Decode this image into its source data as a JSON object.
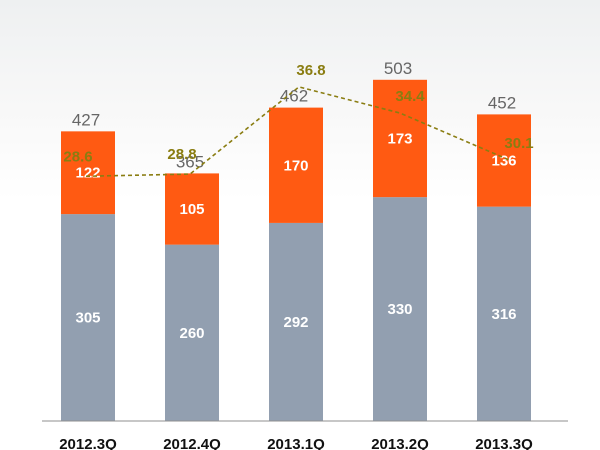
{
  "chart_data": {
    "type": "bar",
    "stacked": true,
    "categories": [
      "2012.3Q",
      "2012.4Q",
      "2013.1Q",
      "2013.2Q",
      "2013.3Q"
    ],
    "series": [
      {
        "values": [
          305,
          260,
          292,
          330,
          316
        ],
        "color": "#929fb0"
      },
      {
        "values": [
          122,
          105,
          170,
          173,
          136
        ],
        "color": "#ff5a12"
      }
    ],
    "totals": [
      427,
      365,
      462,
      503,
      452
    ],
    "line_series": {
      "type": "line",
      "style": "dashed",
      "values": [
        28.6,
        28.8,
        36.8,
        34.4,
        30.1
      ],
      "labels": [
        "28.6",
        "28.8",
        "36.8",
        "34.4",
        "30.1"
      ],
      "color": "#8a7d11",
      "ylim": [
        20,
        40
      ]
    },
    "ylim": [
      0,
      600
    ],
    "grid": false,
    "legend": "none",
    "title": "",
    "xlabel": "",
    "ylabel": ""
  }
}
